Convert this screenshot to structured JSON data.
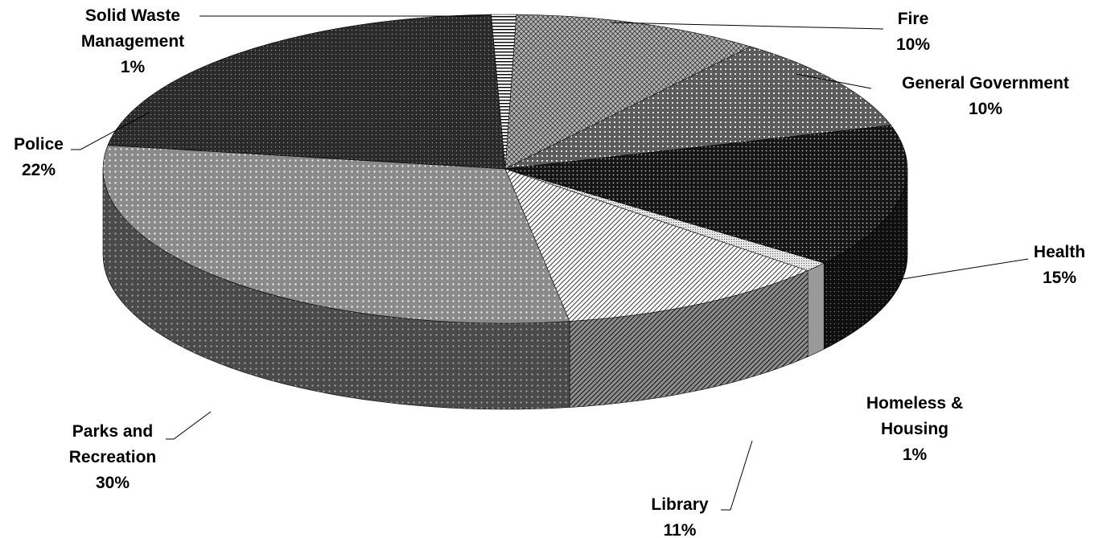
{
  "chart_data": {
    "type": "pie",
    "title": "",
    "legend": "none",
    "slices": [
      {
        "name": "Solid Waste Management",
        "value": 1,
        "label_lines": [
          "Solid Waste",
          "Management"
        ],
        "percent_label": "1%",
        "color": "#ffffff",
        "pattern": "hlines"
      },
      {
        "name": "Fire",
        "value": 10,
        "label_lines": [
          "Fire"
        ],
        "percent_label": "10%",
        "color": "#9a9a9a",
        "pattern": "cross"
      },
      {
        "name": "General Government",
        "value": 10,
        "label_lines": [
          "General Government"
        ],
        "percent_label": "10%",
        "color": "#6e6e6e",
        "pattern": "grid"
      },
      {
        "name": "Health",
        "value": 15,
        "label_lines": [
          "Health"
        ],
        "percent_label": "15%",
        "color": "#1e1e1e",
        "pattern": "dots"
      },
      {
        "name": "Homeless & Housing",
        "value": 1,
        "label_lines": [
          "Homeless &",
          "Housing"
        ],
        "percent_label": "1%",
        "color": "#bdbdbd",
        "pattern": "fine"
      },
      {
        "name": "Library",
        "value": 11,
        "label_lines": [
          "Library"
        ],
        "percent_label": "11%",
        "color": "#d9d9d9",
        "pattern": "diag"
      },
      {
        "name": "Parks and Recreation",
        "value": 30,
        "label_lines": [
          "Parks and",
          "Recreation"
        ],
        "percent_label": "30%",
        "color": "#7f7f7f",
        "pattern": "dots"
      },
      {
        "name": "Police",
        "value": 22,
        "label_lines": [
          "Police"
        ],
        "percent_label": "22%",
        "color": "#2b2b2b",
        "pattern": "dots"
      }
    ]
  }
}
